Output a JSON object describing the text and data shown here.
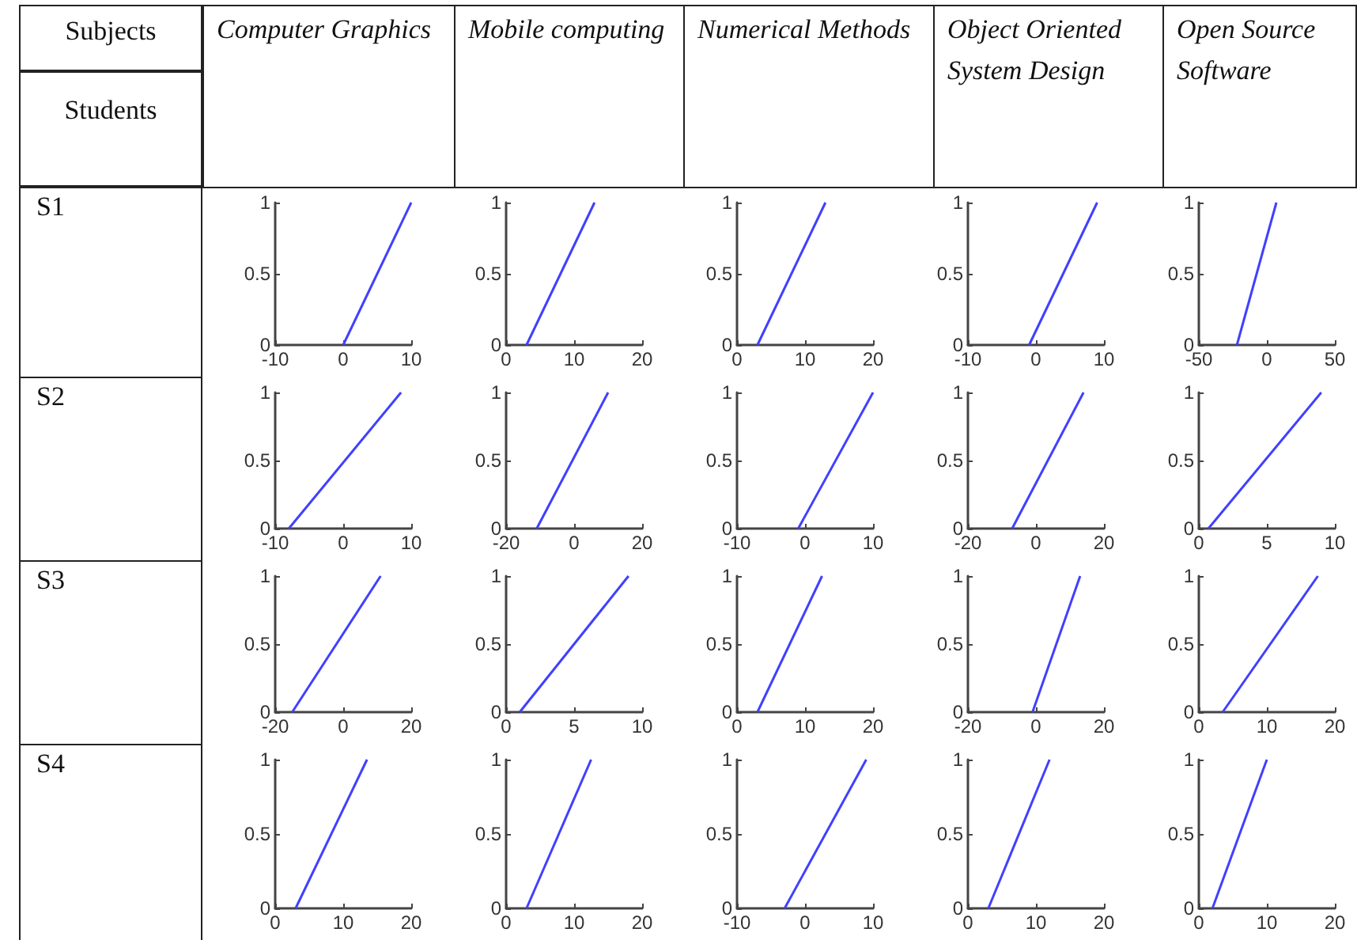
{
  "chart_data": [
    {
      "type": "other",
      "annotations": [
        "Subjects",
        "Students",
        "Computer Graphics",
        "Mobile computing",
        "Numerical Methods",
        "Object Oriented System Design",
        "Open Source Software",
        "S1",
        "S2",
        "S3",
        "S4"
      ]
    },
    {
      "type": "line",
      "x": [
        0,
        10
      ],
      "values": [
        0,
        1
      ],
      "color": "#4040ff",
      "xlim": [
        -10,
        10
      ],
      "xticks": [
        -10,
        0,
        10
      ],
      "ylim": [
        0,
        1
      ],
      "yticks": [
        0,
        0.5,
        1
      ],
      "marker": "none",
      "grid": false
    },
    {
      "type": "line",
      "x": [
        3,
        13
      ],
      "values": [
        0,
        1
      ],
      "color": "#4040ff",
      "xlim": [
        0,
        20
      ],
      "xticks": [
        0,
        10,
        20
      ],
      "ylim": [
        0,
        1
      ],
      "yticks": [
        0,
        0.5,
        1
      ],
      "marker": "none",
      "grid": false
    },
    {
      "type": "line",
      "x": [
        3,
        13
      ],
      "values": [
        0,
        1
      ],
      "color": "#4040ff",
      "xlim": [
        0,
        20
      ],
      "xticks": [
        0,
        10,
        20
      ],
      "ylim": [
        0,
        1
      ],
      "yticks": [
        0,
        0.5,
        1
      ],
      "marker": "none",
      "grid": false
    },
    {
      "type": "line",
      "x": [
        -1,
        9
      ],
      "values": [
        0,
        1
      ],
      "color": "#4040ff",
      "xlim": [
        -10,
        10
      ],
      "xticks": [
        -10,
        0,
        10
      ],
      "ylim": [
        0,
        1
      ],
      "yticks": [
        0,
        0.5,
        1
      ],
      "marker": "none",
      "grid": false
    },
    {
      "type": "line",
      "x": [
        -22,
        7
      ],
      "values": [
        0,
        1
      ],
      "color": "#4040ff",
      "xlim": [
        -50,
        50
      ],
      "xticks": [
        -50,
        0,
        50
      ],
      "ylim": [
        0,
        1
      ],
      "yticks": [
        0,
        0.5,
        1
      ],
      "marker": "none",
      "grid": false
    },
    {
      "type": "line",
      "x": [
        -8,
        8.5
      ],
      "values": [
        0,
        1
      ],
      "color": "#4040ff",
      "xlim": [
        -10,
        10
      ],
      "xticks": [
        -10,
        0,
        10
      ],
      "ylim": [
        0,
        1
      ],
      "yticks": [
        0,
        0.5,
        1
      ],
      "marker": "none",
      "grid": false
    },
    {
      "type": "line",
      "x": [
        -11,
        10
      ],
      "values": [
        0,
        1
      ],
      "color": "#4040ff",
      "xlim": [
        -20,
        20
      ],
      "xticks": [
        -20,
        0,
        20
      ],
      "ylim": [
        0,
        1
      ],
      "yticks": [
        0,
        0.5,
        1
      ],
      "marker": "none",
      "grid": false
    },
    {
      "type": "line",
      "x": [
        -1,
        10
      ],
      "values": [
        0,
        1
      ],
      "color": "#4040ff",
      "xlim": [
        -10,
        10
      ],
      "xticks": [
        -10,
        0,
        10
      ],
      "ylim": [
        0,
        1
      ],
      "yticks": [
        0,
        0.5,
        1
      ],
      "marker": "none",
      "grid": false
    },
    {
      "type": "line",
      "x": [
        -7,
        14
      ],
      "values": [
        0,
        1
      ],
      "color": "#4040ff",
      "xlim": [
        -20,
        20
      ],
      "xticks": [
        -20,
        0,
        20
      ],
      "ylim": [
        0,
        1
      ],
      "yticks": [
        0,
        0.5,
        1
      ],
      "marker": "none",
      "grid": false
    },
    {
      "type": "line",
      "x": [
        0.7,
        9
      ],
      "values": [
        0,
        1
      ],
      "color": "#4040ff",
      "xlim": [
        0,
        10
      ],
      "xticks": [
        0,
        5,
        10
      ],
      "ylim": [
        0,
        1
      ],
      "yticks": [
        0,
        0.5,
        1
      ],
      "marker": "none",
      "grid": false
    },
    {
      "type": "line",
      "x": [
        -15,
        11
      ],
      "values": [
        0,
        1
      ],
      "color": "#4040ff",
      "xlim": [
        -20,
        20
      ],
      "xticks": [
        -20,
        0,
        20
      ],
      "ylim": [
        0,
        1
      ],
      "yticks": [
        0,
        0.5,
        1
      ],
      "marker": "none",
      "grid": false
    },
    {
      "type": "line",
      "x": [
        1,
        9
      ],
      "values": [
        0,
        1
      ],
      "color": "#4040ff",
      "xlim": [
        0,
        10
      ],
      "xticks": [
        0,
        5,
        10
      ],
      "ylim": [
        0,
        1
      ],
      "yticks": [
        0,
        0.5,
        1
      ],
      "marker": "none",
      "grid": false
    },
    {
      "type": "line",
      "x": [
        3,
        12.5
      ],
      "values": [
        0,
        1
      ],
      "color": "#4040ff",
      "xlim": [
        0,
        20
      ],
      "xticks": [
        0,
        10,
        20
      ],
      "ylim": [
        0,
        1
      ],
      "yticks": [
        0,
        0.5,
        1
      ],
      "marker": "none",
      "grid": false
    },
    {
      "type": "line",
      "x": [
        -1,
        13
      ],
      "values": [
        0,
        1
      ],
      "color": "#4040ff",
      "xlim": [
        -20,
        20
      ],
      "xticks": [
        -20,
        0,
        20
      ],
      "ylim": [
        0,
        1
      ],
      "yticks": [
        0,
        0.5,
        1
      ],
      "marker": "none",
      "grid": false
    },
    {
      "type": "line",
      "x": [
        3.5,
        17.5
      ],
      "values": [
        0,
        1
      ],
      "color": "#4040ff",
      "xlim": [
        0,
        20
      ],
      "xticks": [
        0,
        10,
        20
      ],
      "ylim": [
        0,
        1
      ],
      "yticks": [
        0,
        0.5,
        1
      ],
      "marker": "none",
      "grid": false
    },
    {
      "type": "line",
      "x": [
        3,
        13.5
      ],
      "values": [
        0,
        1
      ],
      "color": "#4040ff",
      "xlim": [
        0,
        20
      ],
      "xticks": [
        0,
        10,
        20
      ],
      "ylim": [
        0,
        1
      ],
      "yticks": [
        0,
        0.5,
        1
      ],
      "marker": "none",
      "grid": false
    },
    {
      "type": "line",
      "x": [
        3,
        12.5
      ],
      "values": [
        0,
        1
      ],
      "color": "#4040ff",
      "xlim": [
        0,
        20
      ],
      "xticks": [
        0,
        10,
        20
      ],
      "ylim": [
        0,
        1
      ],
      "yticks": [
        0,
        0.5,
        1
      ],
      "marker": "none",
      "grid": false
    },
    {
      "type": "line",
      "x": [
        -3,
        9
      ],
      "values": [
        0,
        1
      ],
      "color": "#4040ff",
      "xlim": [
        -10,
        10
      ],
      "xticks": [
        -10,
        0,
        10
      ],
      "ylim": [
        0,
        1
      ],
      "yticks": [
        0,
        0.5,
        1
      ],
      "marker": "none",
      "grid": false
    },
    {
      "type": "line",
      "x": [
        3,
        12
      ],
      "values": [
        0,
        1
      ],
      "color": "#4040ff",
      "xlim": [
        0,
        20
      ],
      "xticks": [
        0,
        10,
        20
      ],
      "ylim": [
        0,
        1
      ],
      "yticks": [
        0,
        0.5,
        1
      ],
      "marker": "none",
      "grid": false
    },
    {
      "type": "line",
      "x": [
        2,
        10
      ],
      "values": [
        0,
        1
      ],
      "color": "#4040ff",
      "xlim": [
        0,
        20
      ],
      "xticks": [
        0,
        10,
        20
      ],
      "ylim": [
        0,
        1
      ],
      "yticks": [
        0,
        0.5,
        1
      ],
      "marker": "none",
      "grid": false
    }
  ]
}
